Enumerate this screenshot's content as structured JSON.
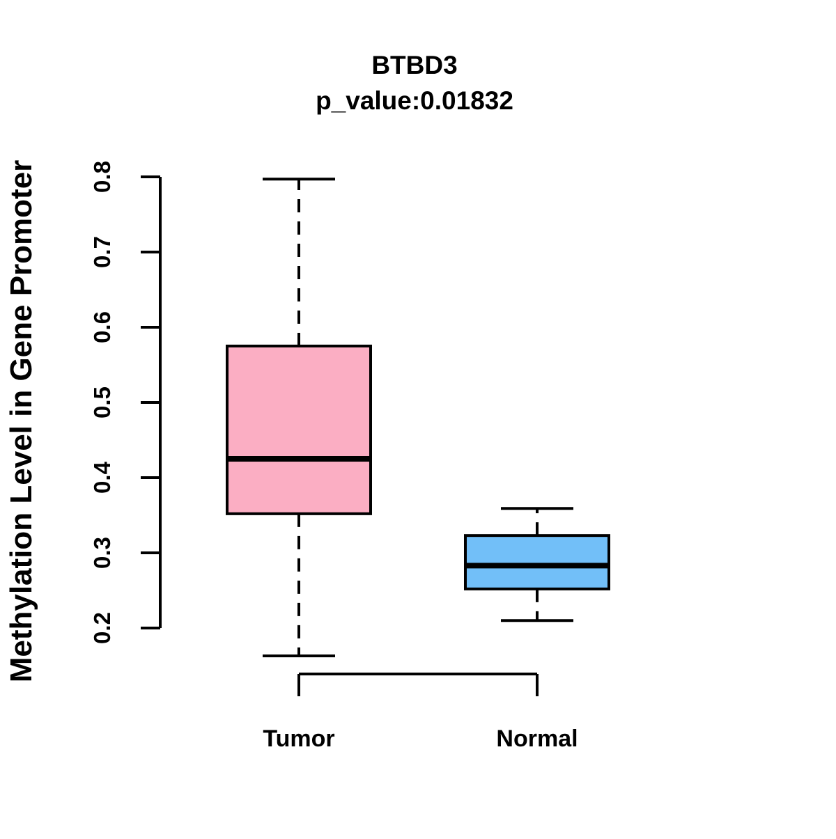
{
  "chart_data": {
    "type": "boxplot",
    "title": "BTBD3",
    "subtitle": "p_value:0.01832",
    "ylabel": "Methylation Level in Gene Promoter",
    "xlabel": "",
    "ylim": [
      0.2,
      0.8
    ],
    "yticks": [
      0.2,
      0.3,
      0.4,
      0.5,
      0.6,
      0.7,
      0.8
    ],
    "grid": false,
    "legend": "none",
    "axis_color": "#000000",
    "categories": [
      "Tumor",
      "Normal"
    ],
    "series": [
      {
        "name": "Tumor",
        "fill_color": "#FBAEC3",
        "border_color": "#000000",
        "lower_whisker": 0.163,
        "q1": 0.352,
        "median": 0.425,
        "q3": 0.575,
        "upper_whisker": 0.797
      },
      {
        "name": "Normal",
        "fill_color": "#72BFF8",
        "border_color": "#000000",
        "lower_whisker": 0.21,
        "q1": 0.252,
        "median": 0.283,
        "q3": 0.323,
        "upper_whisker": 0.359
      }
    ]
  }
}
